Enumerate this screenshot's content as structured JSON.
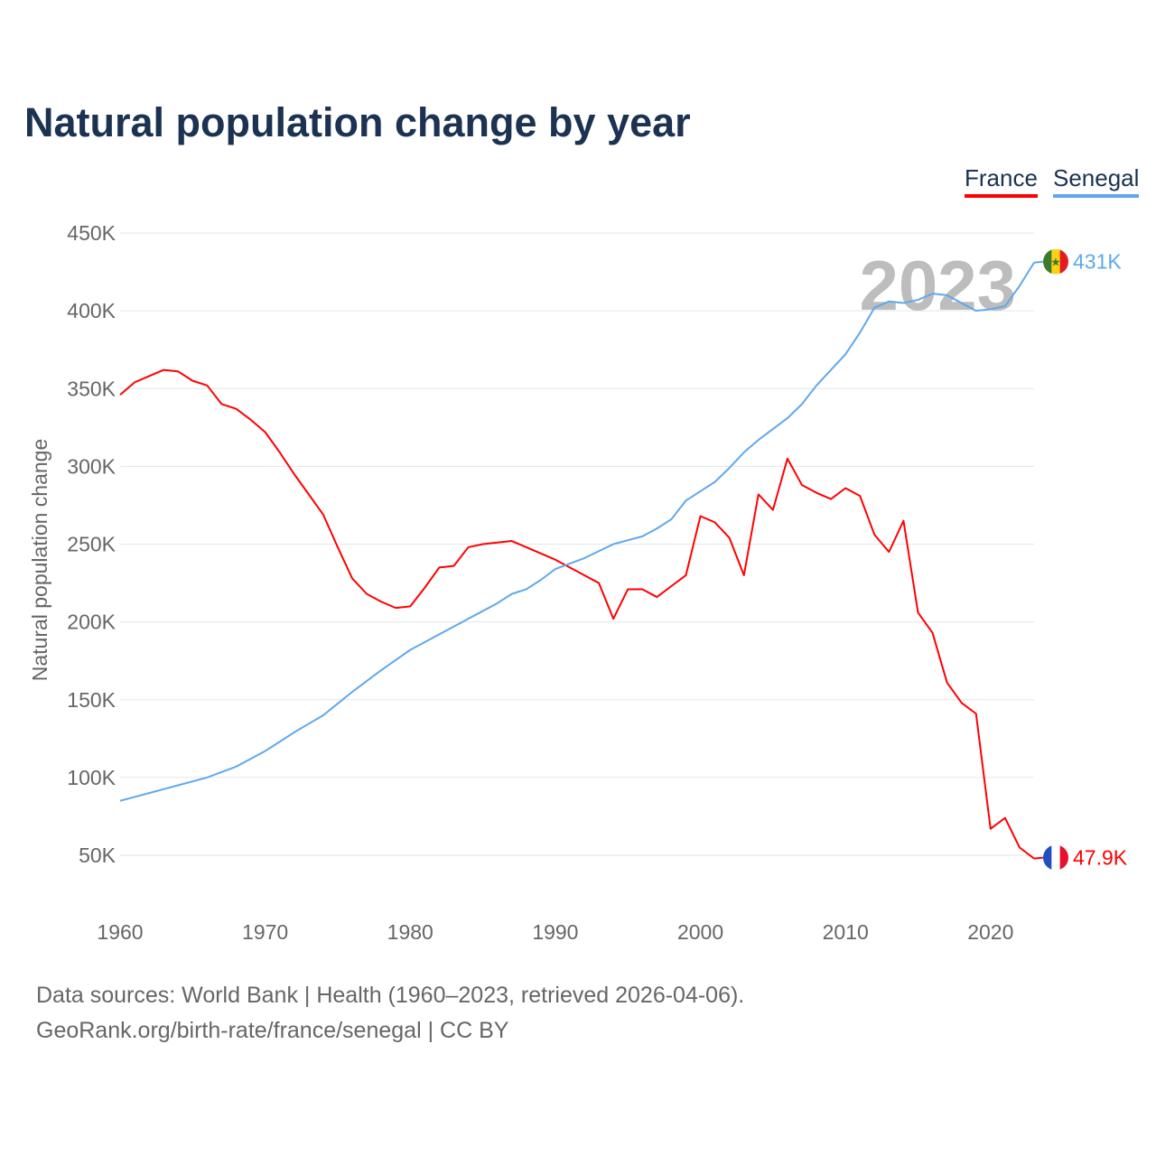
{
  "chart_data": {
    "type": "line",
    "title": "Natural population change by year",
    "xlabel": "",
    "ylabel": "Natural population change",
    "xlim": [
      1960,
      2023
    ],
    "ylim": [
      50000,
      450000
    ],
    "grid": true,
    "legend_position": "top-right",
    "x_ticks": [
      1960,
      1970,
      1980,
      1990,
      2000,
      2010,
      2020
    ],
    "y_ticks": [
      {
        "v": 50000,
        "label": "50K"
      },
      {
        "v": 100000,
        "label": "100K"
      },
      {
        "v": 150000,
        "label": "150K"
      },
      {
        "v": 200000,
        "label": "200K"
      },
      {
        "v": 250000,
        "label": "250K"
      },
      {
        "v": 300000,
        "label": "300K"
      },
      {
        "v": 350000,
        "label": "350K"
      },
      {
        "v": 400000,
        "label": "400K"
      },
      {
        "v": 450000,
        "label": "450K"
      }
    ],
    "year_watermark": "2023",
    "series": [
      {
        "name": "France",
        "color": "#ff0000",
        "end_label": "47.9K",
        "flag": "france-flag",
        "x_start": 1960,
        "values_k": [
          346,
          354,
          358,
          362,
          361,
          355,
          352,
          340,
          337,
          330,
          322,
          309,
          295,
          282,
          269,
          248,
          228,
          218,
          213,
          209,
          210,
          222,
          235,
          236,
          248,
          250,
          251,
          252,
          248,
          244,
          240,
          235,
          230,
          225,
          202,
          221,
          221,
          216,
          223,
          230,
          268,
          264,
          254,
          230,
          282,
          272,
          305,
          288,
          283,
          279,
          286,
          281,
          256,
          245,
          265,
          206,
          193,
          161,
          148,
          141,
          67,
          74,
          55,
          47.9
        ]
      },
      {
        "name": "Senegal",
        "color": "#5fa8ec",
        "end_label": "431K",
        "flag": "senegal-flag",
        "x_start": 1960,
        "values_k": [
          85,
          87.5,
          90,
          92.5,
          95,
          97.5,
          100,
          103.5,
          107,
          112,
          117,
          123,
          129,
          134.5,
          140,
          147.5,
          155,
          162,
          169,
          175.5,
          182,
          187,
          192,
          197,
          202,
          207,
          212,
          218,
          221,
          227,
          234,
          237.5,
          241,
          245.5,
          250,
          252.5,
          255,
          260,
          266,
          278,
          284,
          290,
          299,
          309,
          317,
          324,
          331,
          340,
          352,
          362,
          372,
          386,
          402,
          406,
          405,
          407,
          411,
          410,
          405,
          400,
          401,
          403,
          416,
          431
        ]
      }
    ]
  },
  "footer": {
    "line1": "Data sources: World Bank | Health (1960–2023, retrieved 2026-04-06).",
    "line2": "GeoRank.org/birth-rate/france/senegal | CC BY"
  }
}
